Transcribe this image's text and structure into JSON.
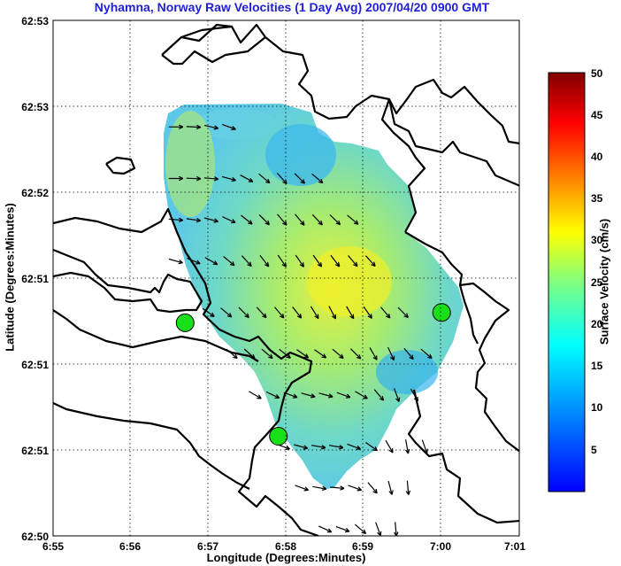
{
  "title": "Nyhamna, Norway Raw Velocities (1 Day Avg) 2007/04/20 0900 GMT",
  "xlabel": "Longitude (Degrees:Minutes)",
  "ylabel": "Latitude (Degrees:Minutes)",
  "colorbar_label": "Surface Velocity (cm/s)",
  "x_ticks": [
    "6:55",
    "6:56",
    "6:57",
    "6:58",
    "6:59",
    "7:00",
    "7:01"
  ],
  "y_ticks": [
    "62:53",
    "62:53",
    "62:52",
    "62:51",
    "62:51",
    "62:51",
    "62:50"
  ],
  "colorbar_ticks": [
    "50",
    "45",
    "40",
    "35",
    "30",
    "25",
    "20",
    "15",
    "10",
    "5"
  ],
  "colors": {
    "title": "#1f1fd6",
    "stations": "#18e018",
    "coast": "#000000"
  },
  "map_data": {
    "colorscale": {
      "min": 0,
      "max": 50,
      "name": "jet"
    },
    "stations": [
      {
        "lon": 6.945,
        "lat": 62.854
      },
      {
        "lon": 6.965,
        "lat": 62.843
      },
      {
        "lon": 7.0,
        "lat": 62.855
      }
    ],
    "vector_rows": [
      {
        "lat": 62.873,
        "lon_start": 6.943,
        "dir_deg": [
          0,
          3,
          12,
          20
        ]
      },
      {
        "lat": 62.868,
        "lon_start": 6.943,
        "dir_deg": [
          0,
          2,
          5,
          15,
          28,
          40,
          48,
          45,
          40
        ]
      },
      {
        "lat": 62.864,
        "lon_start": 6.943,
        "dir_deg": [
          5,
          8,
          15,
          25,
          38,
          45,
          50,
          50,
          46,
          44,
          40
        ]
      },
      {
        "lat": 62.86,
        "lon_start": 6.943,
        "dir_deg": [
          15,
          22,
          30,
          40,
          48,
          52,
          55,
          55,
          54,
          52,
          50,
          48
        ]
      },
      {
        "lat": 62.855,
        "lon_start": 6.95,
        "dir_deg": [
          35,
          40,
          45,
          48,
          50,
          52,
          58,
          62,
          60,
          55,
          50,
          45
        ]
      },
      {
        "lat": 62.851,
        "lon_start": 6.955,
        "dir_deg": [
          40,
          42,
          40,
          38,
          35,
          35,
          40,
          45,
          60,
          65,
          50,
          40
        ]
      },
      {
        "lat": 62.847,
        "lon_start": 6.96,
        "dir_deg": [
          30,
          25,
          20,
          15,
          15,
          20,
          30,
          50,
          70,
          60
        ]
      },
      {
        "lat": 62.842,
        "lon_start": 6.966,
        "dir_deg": [
          20,
          15,
          10,
          10,
          20,
          35,
          60,
          80,
          70
        ]
      },
      {
        "lat": 62.838,
        "lon_start": 6.97,
        "dir_deg": [
          20,
          10,
          5,
          20,
          50,
          75,
          85
        ]
      },
      {
        "lat": 62.834,
        "lon_start": 6.975,
        "dir_deg": [
          25,
          20,
          40,
          70,
          85
        ]
      },
      {
        "lat": 62.83,
        "lon_start": 6.982,
        "dir_deg": [
          60,
          80,
          90
        ]
      }
    ]
  }
}
